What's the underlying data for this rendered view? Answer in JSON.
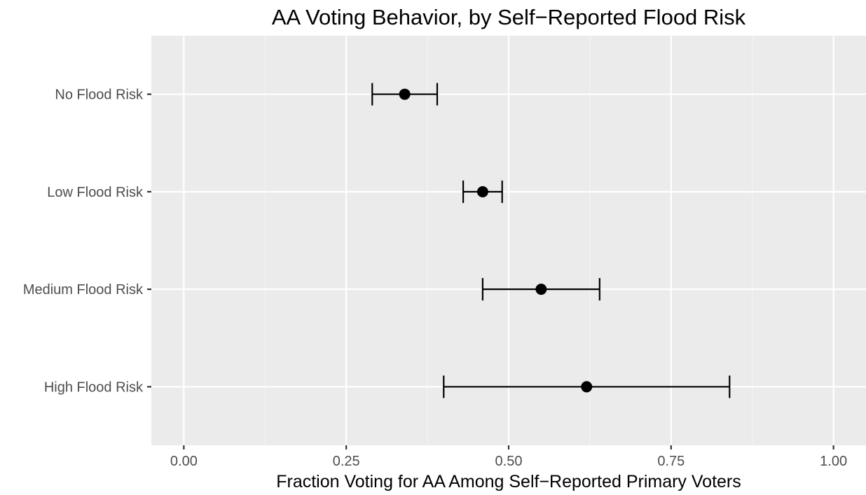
{
  "chart_data": {
    "type": "errorbar",
    "title": "AA Voting Behavior, by Self−Reported Flood Risk",
    "xlabel": "Fraction Voting for AA Among Self−Reported Primary Voters",
    "ylabel": "",
    "xlim": [
      -0.05,
      1.05
    ],
    "xticks": [
      0.0,
      0.25,
      0.5,
      0.75,
      1.0
    ],
    "xtick_labels": [
      "0.00",
      "0.25",
      "0.50",
      "0.75",
      "1.00"
    ],
    "grid": true,
    "legend": "none",
    "categories": [
      "No Flood Risk",
      "Low Flood Risk",
      "Medium Flood Risk",
      "High Flood Risk"
    ],
    "points": [
      {
        "category": "No Flood Risk",
        "estimate": 0.34,
        "lower": 0.29,
        "upper": 0.39
      },
      {
        "category": "Low Flood Risk",
        "estimate": 0.46,
        "lower": 0.43,
        "upper": 0.49
      },
      {
        "category": "Medium Flood Risk",
        "estimate": 0.55,
        "lower": 0.46,
        "upper": 0.64
      },
      {
        "category": "High Flood Risk",
        "estimate": 0.62,
        "lower": 0.4,
        "upper": 0.84
      }
    ]
  },
  "colors": {
    "panel_background": "#ebebeb",
    "grid_major": "#ffffff",
    "grid_minor": "#f5f5f5",
    "marks": "#000000",
    "tick_text": "#4d4d4d",
    "text": "#000000"
  }
}
